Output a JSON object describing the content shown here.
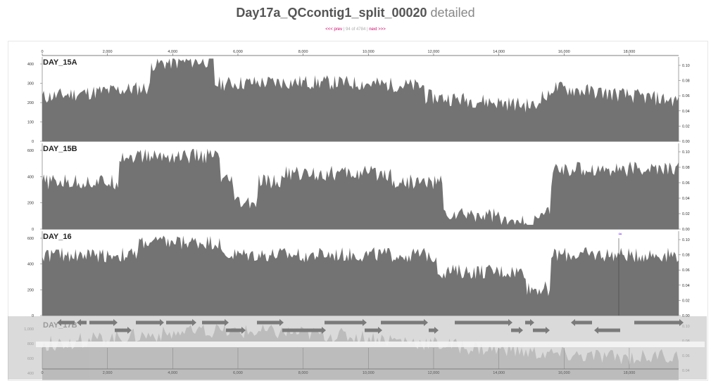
{
  "header": {
    "title": "Day17a_QCcontig1_split_00020",
    "title_suffix": "detailed",
    "prev_label": "<<< prev",
    "position_text": "94 of 4784",
    "next_label": "next >>>"
  },
  "x_axis": {
    "ticks": [
      "0",
      "2,000",
      "4,000",
      "6,000",
      "8,000",
      "10,000",
      "12,000",
      "14,000",
      "16,000",
      "18,000"
    ]
  },
  "tracks": [
    {
      "name": "DAY_15A",
      "left_ticks": [
        "400",
        "300",
        "200",
        "100",
        "0"
      ],
      "right_ticks": [
        "0.10",
        "0.08",
        "0.06",
        "0.04",
        "0.02",
        "0.00"
      ]
    },
    {
      "name": "DAY_15B",
      "left_ticks": [
        "600",
        "400",
        "200",
        "0"
      ],
      "right_ticks": [
        "0.10",
        "0.08",
        "0.06",
        "0.04",
        "0.02",
        "0.00"
      ]
    },
    {
      "name": "DAY_16",
      "left_ticks": [
        "600",
        "400",
        "200",
        "0"
      ],
      "right_ticks": [
        "0.10",
        "0.08",
        "0.06",
        "0.04",
        "0.02",
        "0.00"
      ]
    },
    {
      "name": "DAY_17B",
      "left_ticks": [
        "1,000",
        "800",
        "600",
        "400"
      ],
      "right_ticks": [
        "0.10",
        "0.08",
        "0.06",
        "0.04"
      ]
    }
  ],
  "marker": {
    "symbol": "≈",
    "color": "#7b2fff"
  },
  "colors": {
    "area": "#737373",
    "overlay": "#999999",
    "link": "#cc0066",
    "gene": "#7a7a7a"
  }
}
